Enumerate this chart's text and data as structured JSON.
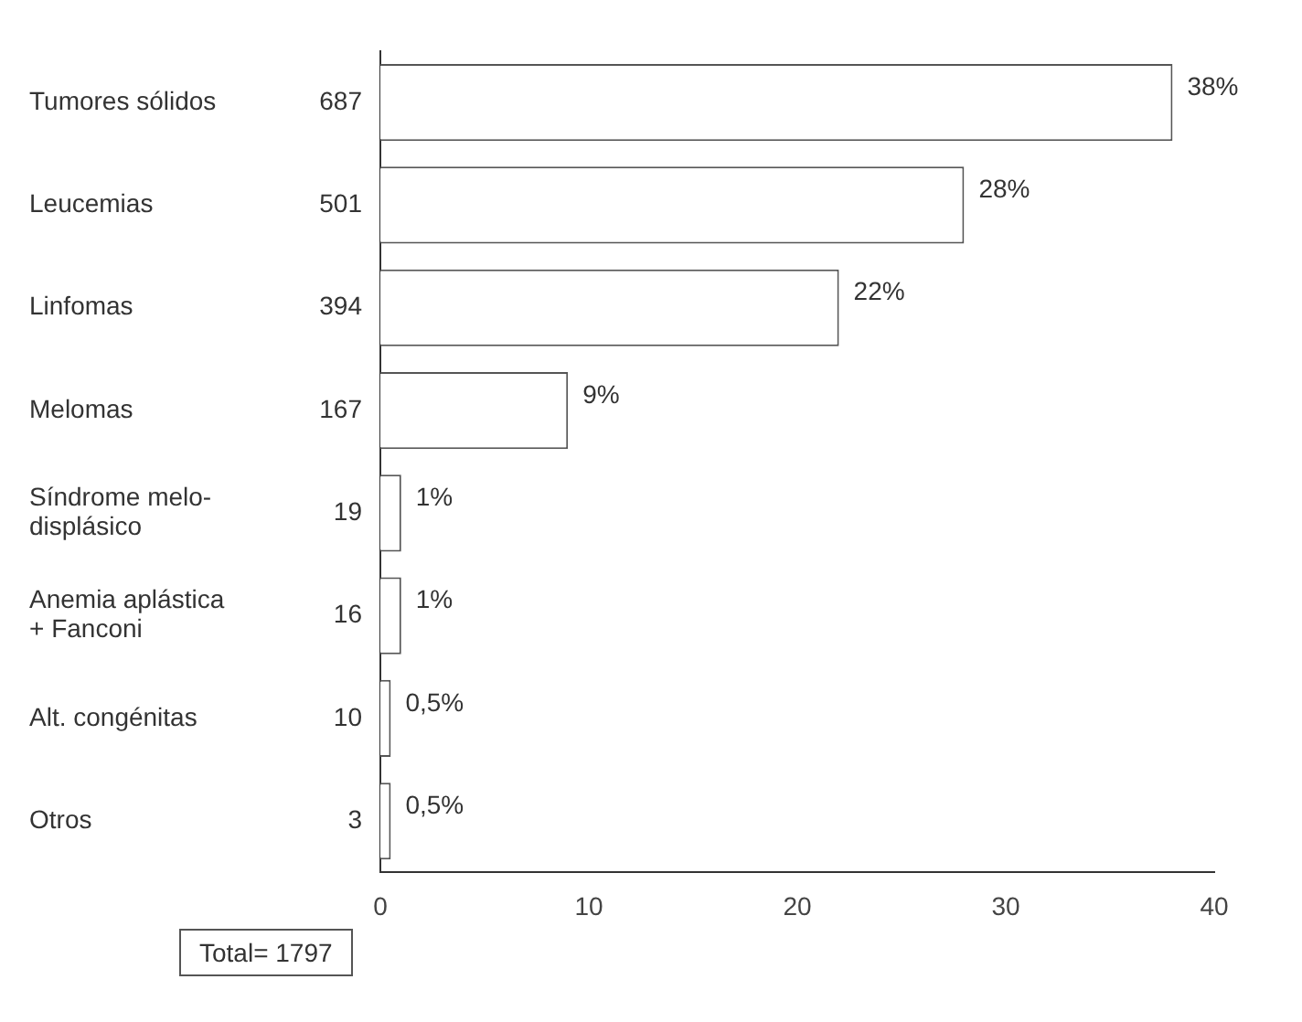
{
  "chart_data": {
    "type": "bar",
    "orientation": "horizontal",
    "categories": [
      "Tumores sólidos",
      "Leucemias",
      "Linfomas",
      "Melomas",
      "Síndrome melo-\ndisplásico",
      "Anemia aplástica\n+ Fanconi",
      "Alt. congénitas",
      "Otros"
    ],
    "values": [
      38,
      28,
      22,
      9,
      1,
      1,
      0.5,
      0.5
    ],
    "value_labels": [
      "38%",
      "28%",
      "22%",
      "9%",
      "1%",
      "1%",
      "0,5%",
      "0,5%"
    ],
    "color": "#ffffff",
    "xlim": [
      0,
      40
    ],
    "xticks": [
      0,
      10,
      20,
      30,
      40
    ],
    "grid": false,
    "annotations": [
      "687",
      "501",
      "394",
      "167",
      "19",
      "16",
      "10",
      "3",
      "Total= 1797"
    ]
  }
}
